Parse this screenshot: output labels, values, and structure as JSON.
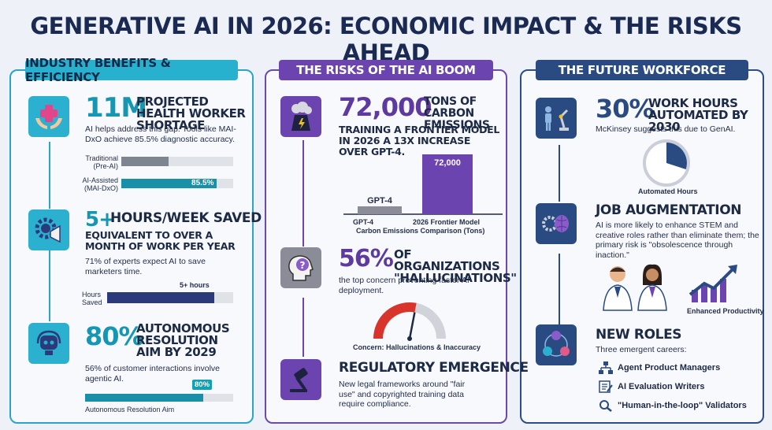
{
  "title": "GENERATIVE AI IN 2026: ECONOMIC IMPACT & THE RISKS AHEAD",
  "columns": {
    "benefits": {
      "heading": "INDUSTRY BENEFITS & EFFICIENCY",
      "health": {
        "stat": "11M",
        "label": "PROJECTED HEALTH WORKER SHORTAGE",
        "desc": "AI helps address this gap. Tools like MAI-DxO achieve 85.5% diagnostic accuracy.",
        "bars": [
          {
            "label": "Traditional (Pre-AI)",
            "value_label": "",
            "fraction": 0.42
          },
          {
            "label": "AI-Assisted (MAI-DxO)",
            "value_label": "85.5%",
            "fraction": 0.855
          }
        ]
      },
      "hours": {
        "stat": "5+",
        "label": "HOURS/WEEK SAVED",
        "sub": "EQUIVALENT TO OVER A MONTH OF WORK PER YEAR",
        "desc": "71% of experts expect AI to save marketers time.",
        "bar_value_label": "5+ hours",
        "bar_label": "Hours Saved",
        "fraction": 0.85
      },
      "autonomous": {
        "stat": "80%",
        "label": "AUTONOMOUS RESOLUTION AIM BY 2029",
        "desc": "56% of customer interactions involve agentic AI.",
        "bar_value_label": "80%",
        "bar_label": "Autonomous Resolution Aim",
        "fraction": 0.8
      }
    },
    "risks": {
      "heading": "THE RISKS OF THE AI BOOM",
      "carbon": {
        "stat": "72,000",
        "label": "TONS OF CARBON EMISSIONS",
        "sub": "TRAINING A FRONTIER MODEL IN 2026 A 13X INCREASE OVER GPT-4.",
        "bar_top_label": "72,000",
        "small_bar_label": "GPT-4",
        "chart_title": "Carbon Emissions Comparison (Tons)"
      },
      "hallucinations": {
        "stat": "56%",
        "label": "OF ORGANIZATIONS \"HALLUCINATIONS\"",
        "desc": "the top concern preventing faster AI deployment.",
        "gauge_label": "56%",
        "gauge_value": 56,
        "caption": "Concern: Hallucinations & Inaccuracy"
      },
      "regulatory": {
        "title": "REGULATORY EMERGENCE",
        "desc": "New legal frameworks around \"fair use\" and copyrighted training data require compliance."
      }
    },
    "workforce": {
      "heading": "THE FUTURE WORKFORCE",
      "automated": {
        "stat": "30%",
        "label": "WORK HOURS AUTOMATED BY 2030",
        "desc": "McKinsey suggests this due to GenAI.",
        "pie_label": "30%",
        "pie_value": 30,
        "caption": "Automated Hours"
      },
      "augmentation": {
        "title": "JOB AUGMENTATION",
        "desc": "AI is more likely to enhance STEM and creative roles rather than eliminate them; the primary risk is \"obsolescence through inaction.\"",
        "caption": "Enhanced Productivity"
      },
      "roles": {
        "title": "NEW ROLES",
        "sub": "Three emergent careers:",
        "items": [
          "Agent Product Managers",
          "AI Evaluation Writers",
          "\"Human-in-the-loop\" Validators"
        ]
      }
    }
  },
  "chart_data": {
    "type": "bar",
    "categories": [
      "GPT-4",
      "2026 Frontier Model"
    ],
    "values": [
      5538,
      72000
    ],
    "title": "",
    "xlabel": "Carbon Emissions Comparison (Tons)",
    "ylabel": ""
  },
  "colors": {
    "teal": "#17a3bd",
    "purple": "#6c44b0",
    "navy": "#2a4b82",
    "red": "#d9342b"
  }
}
